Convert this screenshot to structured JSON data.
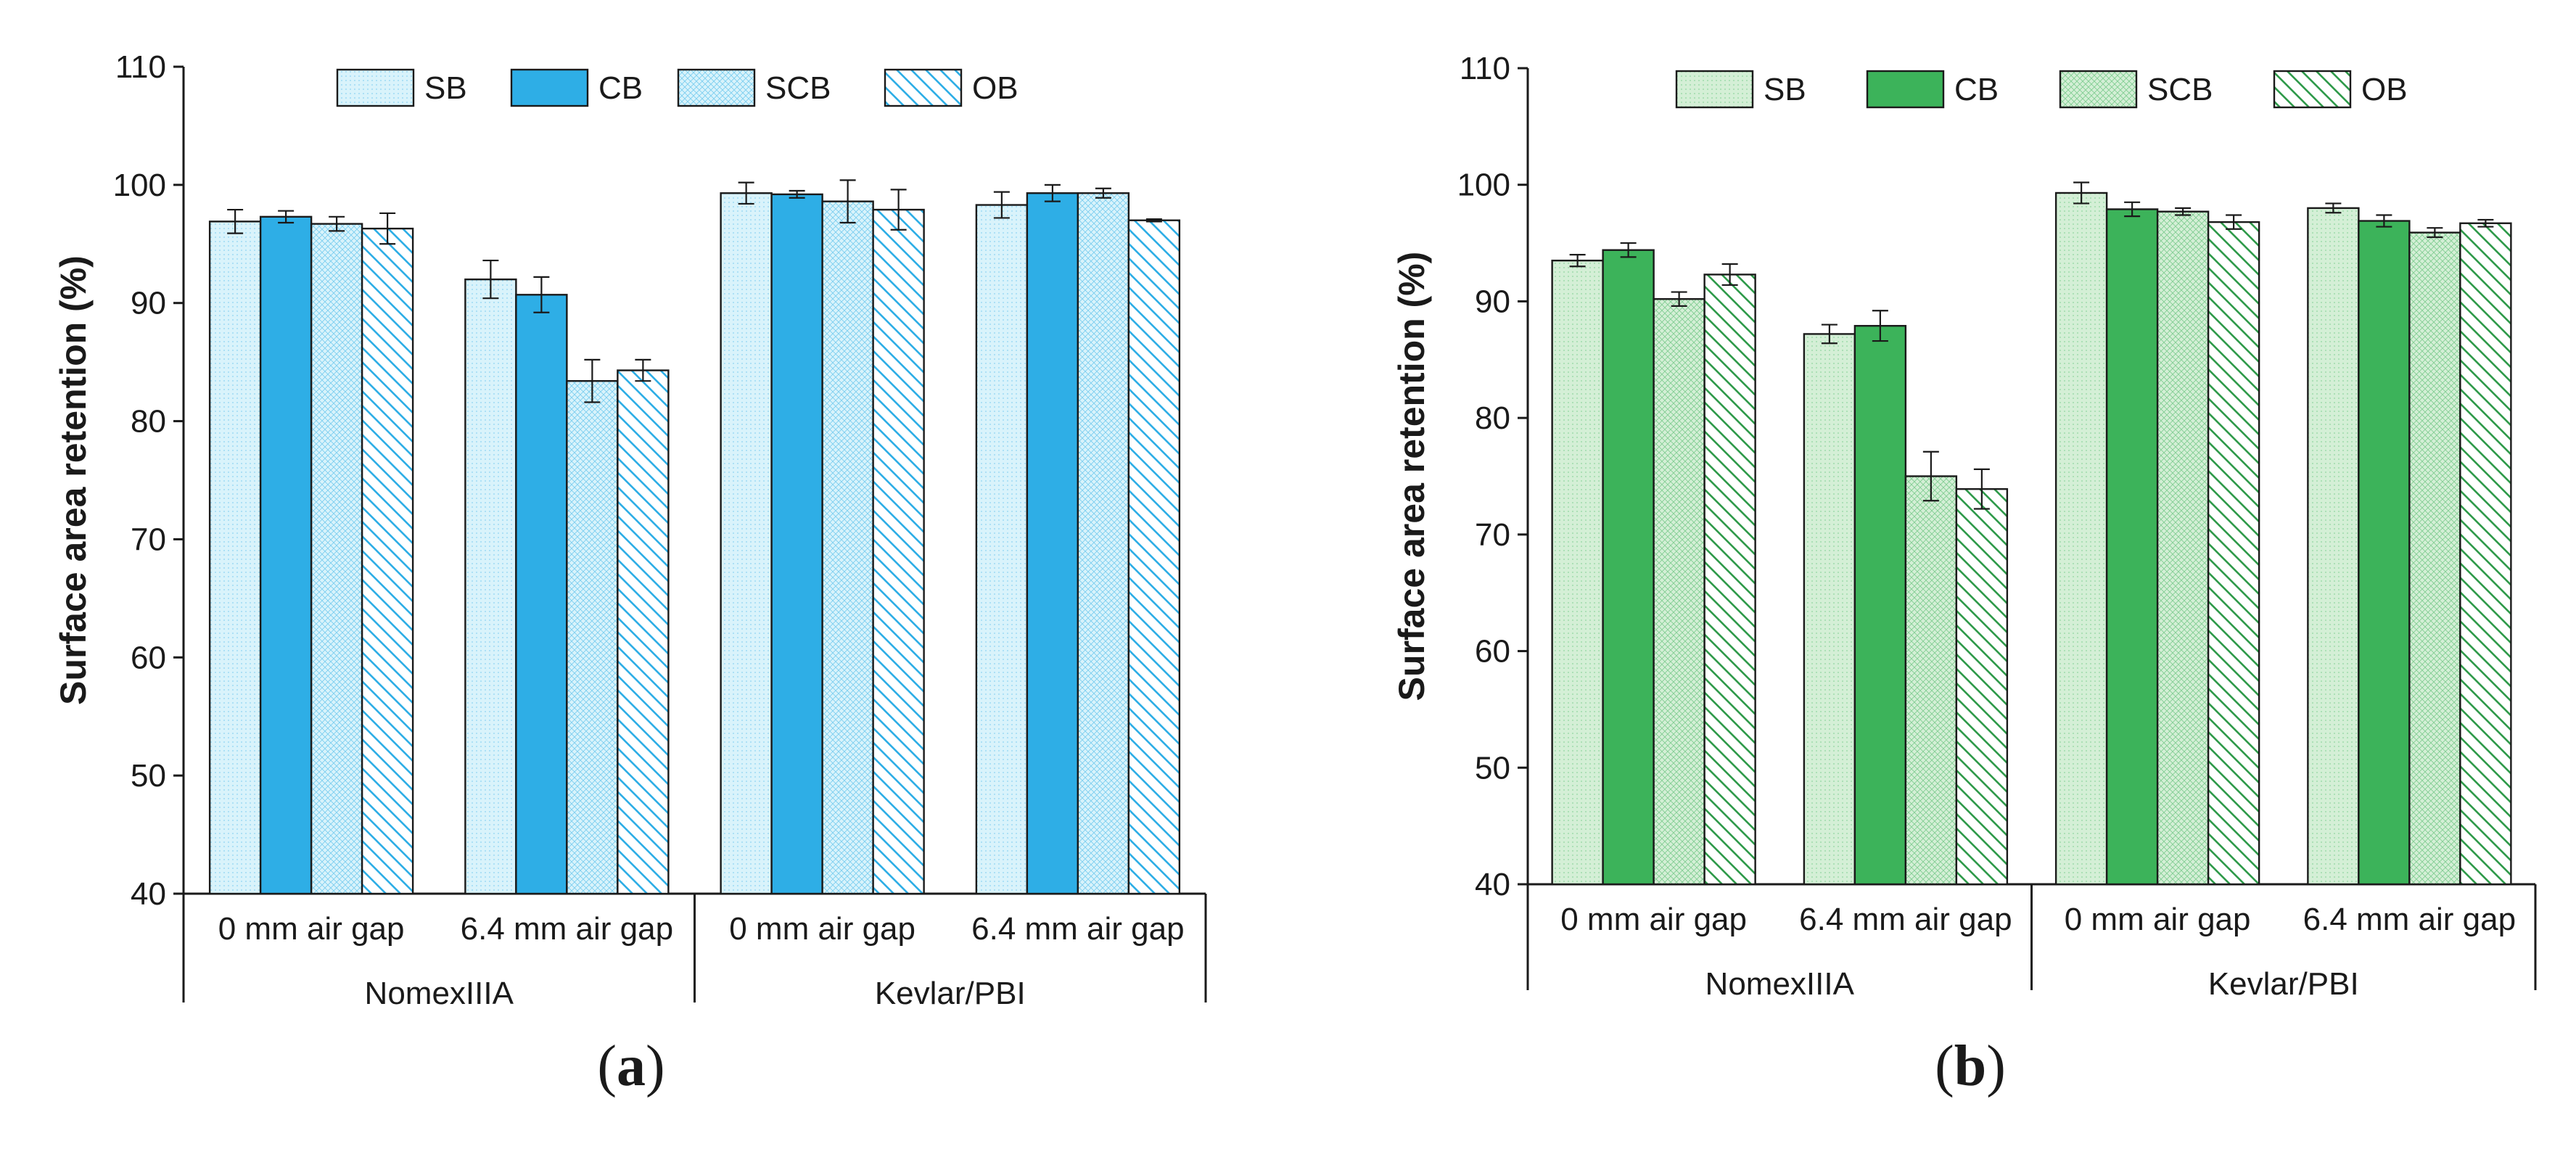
{
  "chart_data": [
    {
      "type": "bar",
      "panel": "(a)",
      "panel_letter": "a",
      "ylabel": "Surface area retention (%)",
      "xlabel": "",
      "ylim": [
        40,
        110
      ],
      "yticks": [
        40,
        50,
        60,
        70,
        80,
        90,
        100,
        110
      ],
      "grid": false,
      "legend_position": "top",
      "colors": {
        "fill": "#d9f3fb",
        "solid": "#2eaee6",
        "hatch": "#2eaee6"
      },
      "groups": [
        "NomexIIIA",
        "Kevlar/PBI"
      ],
      "categories": [
        "0 mm air gap",
        "6.4 mm air gap",
        "0 mm air gap",
        "6.4 mm air gap"
      ],
      "series": [
        {
          "name": "SB",
          "values": [
            96.9,
            92.0,
            99.3,
            98.3
          ],
          "errors": [
            1.0,
            1.6,
            0.9,
            1.1
          ]
        },
        {
          "name": "CB",
          "values": [
            97.3,
            90.7,
            99.2,
            99.3
          ],
          "errors": [
            0.5,
            1.5,
            0.3,
            0.7
          ]
        },
        {
          "name": "SCB",
          "values": [
            96.7,
            83.4,
            98.6,
            99.3
          ],
          "errors": [
            0.6,
            1.8,
            1.8,
            0.4
          ]
        },
        {
          "name": "OB",
          "values": [
            96.3,
            84.3,
            97.9,
            97.0
          ],
          "errors": [
            1.3,
            0.9,
            1.7,
            0.1
          ]
        }
      ]
    },
    {
      "type": "bar",
      "panel": "(b)",
      "panel_letter": "b",
      "ylabel": "Surface area retention (%)",
      "xlabel": "",
      "ylim": [
        40,
        110
      ],
      "yticks": [
        40,
        50,
        60,
        70,
        80,
        90,
        100,
        110
      ],
      "grid": false,
      "legend_position": "top",
      "colors": {
        "fill": "#d4efd6",
        "solid": "#3cb35a",
        "hatch": "#2f9a4a"
      },
      "groups": [
        "NomexIIIA",
        "Kevlar/PBI"
      ],
      "categories": [
        "0 mm air gap",
        "6.4 mm air gap",
        "0 mm air gap",
        "6.4 mm air gap"
      ],
      "series": [
        {
          "name": "SB",
          "values": [
            93.5,
            87.2,
            99.3,
            98.0
          ],
          "errors": [
            0.5,
            0.8,
            0.9,
            0.4
          ]
        },
        {
          "name": "CB",
          "values": [
            94.4,
            87.9,
            97.9,
            96.9
          ],
          "errors": [
            0.6,
            1.3,
            0.6,
            0.5
          ]
        },
        {
          "name": "SCB",
          "values": [
            90.2,
            75.0,
            97.7,
            95.9
          ],
          "errors": [
            0.6,
            2.1,
            0.3,
            0.4
          ]
        },
        {
          "name": "OB",
          "values": [
            92.3,
            73.9,
            96.8,
            96.7
          ],
          "errors": [
            0.9,
            1.7,
            0.6,
            0.3
          ]
        }
      ]
    }
  ]
}
